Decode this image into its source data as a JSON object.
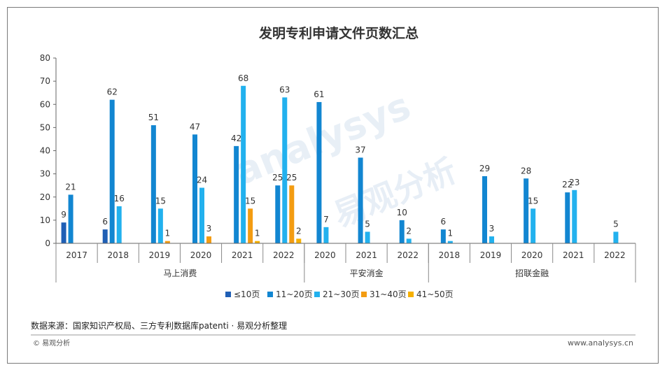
{
  "chart_data": {
    "type": "bar",
    "title": "发明专利申请文件页数汇总",
    "ylim": [
      0,
      80
    ],
    "yticks": [
      0,
      10,
      20,
      30,
      40,
      50,
      60,
      70,
      80
    ],
    "series": [
      {
        "name": "≤10页",
        "color": "#1f5fb5"
      },
      {
        "name": "11~20页",
        "color": "#1286d1"
      },
      {
        "name": "21~30页",
        "color": "#22b1ee"
      },
      {
        "name": "31~40页",
        "color": "#f39c12"
      },
      {
        "name": "41~50页",
        "color": "#f6b000"
      }
    ],
    "groups": [
      {
        "name": "马上消费",
        "years": [
          {
            "year": "2017",
            "values": [
              9,
              21,
              null,
              null,
              null
            ]
          },
          {
            "year": "2018",
            "values": [
              6,
              62,
              16,
              null,
              null
            ]
          },
          {
            "year": "2019",
            "values": [
              null,
              51,
              15,
              1,
              null
            ]
          },
          {
            "year": "2020",
            "values": [
              null,
              47,
              24,
              3,
              null
            ]
          },
          {
            "year": "2021",
            "values": [
              null,
              42,
              68,
              15,
              1
            ]
          },
          {
            "year": "2022",
            "values": [
              null,
              25,
              63,
              25,
              2
            ]
          }
        ]
      },
      {
        "name": "平安消金",
        "years": [
          {
            "year": "2020",
            "values": [
              null,
              61,
              7,
              null,
              null
            ]
          },
          {
            "year": "2021",
            "values": [
              null,
              37,
              5,
              null,
              null
            ]
          },
          {
            "year": "2022",
            "values": [
              null,
              10,
              2,
              null,
              null
            ]
          }
        ]
      },
      {
        "name": "招联金融",
        "years": [
          {
            "year": "2018",
            "values": [
              null,
              6,
              1,
              null,
              null
            ]
          },
          {
            "year": "2019",
            "values": [
              null,
              29,
              3,
              null,
              null
            ]
          },
          {
            "year": "2020",
            "values": [
              null,
              28,
              15,
              null,
              null
            ]
          },
          {
            "year": "2021",
            "values": [
              null,
              22,
              23,
              null,
              null
            ]
          },
          {
            "year": "2022",
            "values": [
              null,
              null,
              5,
              null,
              null
            ]
          }
        ]
      }
    ]
  },
  "watermark": {
    "latin": "analysys",
    "cjk": "易观分析"
  },
  "footer": {
    "source": "数据来源：国家知识产权局、三方专利数据库patenti · 易观分析整理",
    "copyright": "© 易观分析",
    "site": "www.analysys.cn"
  }
}
